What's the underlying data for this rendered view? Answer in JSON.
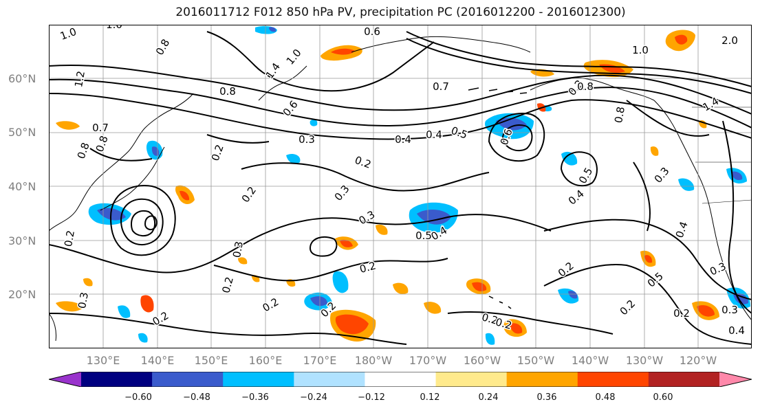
{
  "title": "2016011712 F012 850 hPa PV, precipitation PC (2016012200 - 2016012300)",
  "map": {
    "lat_labels": [
      "60°N",
      "50°N",
      "40°N",
      "30°N",
      "20°N"
    ],
    "lon_labels": [
      "130°E",
      "140°E",
      "150°E",
      "160°E",
      "170°E",
      "180°W",
      "170°W",
      "160°W",
      "150°W",
      "140°W",
      "130°W",
      "120°W"
    ],
    "contour_labels": [
      "1.0",
      "1.0",
      "0.6",
      "0.8",
      "1.4",
      "1.0",
      "0.7",
      "0.8",
      "0.6",
      "0.7",
      "0.8",
      "0.3",
      "0.2",
      "0.4",
      "0.4",
      "0.5",
      "0.6",
      "0.2",
      "0.2",
      "0.3",
      "0.3",
      "0.5",
      "0.4",
      "0.2",
      "0.3",
      "0.2",
      "0.2",
      "0.2",
      "0.2",
      "0.3",
      "0.2",
      "0.5",
      "0.3",
      "0.4",
      "0.3",
      "0.2",
      "0.5",
      "0.3",
      "0.4",
      "0.2",
      "0.8",
      "0.2",
      "0.4",
      "0.2",
      "1.4",
      "1.0",
      "2.0",
      "1.2",
      "0.8",
      "0.8",
      "0.2",
      "0.2"
    ],
    "land_color": "#000000",
    "grid_color": "#999999"
  },
  "colorbar": {
    "colors": [
      "#9933cc",
      "#000080",
      "#3a5bcc",
      "#00bfff",
      "#b0e2ff",
      "#ffffff",
      "#ffea8c",
      "#ffa500",
      "#ff4500",
      "#b22222",
      "#ff88aa"
    ],
    "ticks": [
      "−0.60",
      "−0.48",
      "−0.36",
      "−0.24",
      "−0.12",
      "0.12",
      "0.24",
      "0.36",
      "0.48",
      "0.60"
    ]
  }
}
